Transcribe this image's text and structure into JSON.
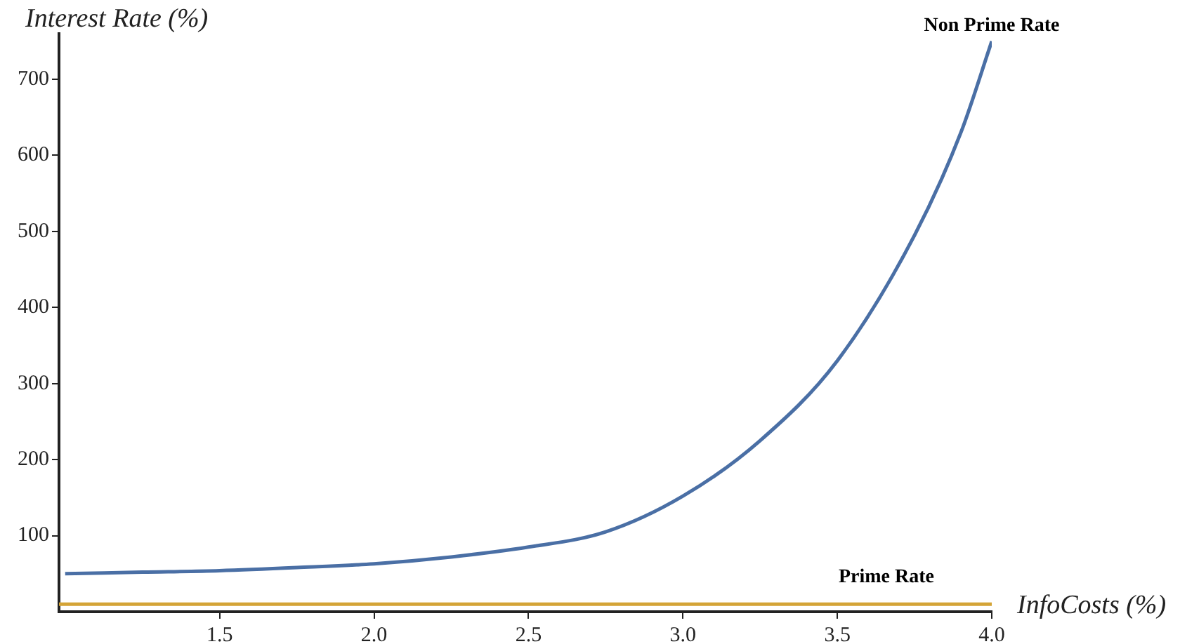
{
  "chart_data": {
    "type": "line",
    "xlabel": "InfoCosts (%)",
    "ylabel": "Interest Rate (%)",
    "xlim": [
      0.98,
      4.0
    ],
    "ylim": [
      0,
      760
    ],
    "xticks": [
      1.5,
      {
        "value": 2,
        "label": "2.0"
      },
      2.5,
      {
        "value": 3,
        "label": "3.0"
      },
      3.5,
      {
        "value": 4,
        "label": "4.0"
      }
    ],
    "yticks": [
      100,
      200,
      300,
      400,
      500,
      600,
      700
    ],
    "marker": "none",
    "series": [
      {
        "name": "Non Prime Rate",
        "color": "#4a6fa5",
        "x": [
          1.0,
          1.25,
          1.5,
          1.75,
          2.0,
          2.25,
          2.5,
          2.75,
          3.0,
          3.25,
          3.5,
          3.75,
          3.9,
          4.0
        ],
        "values": [
          50,
          52,
          54,
          58,
          63,
          72,
          85,
          105,
          152,
          225,
          330,
          495,
          630,
          750
        ]
      },
      {
        "name": "Prime Rate",
        "color": "#d4a437",
        "x": [
          0.98,
          4.0
        ],
        "values": [
          10,
          10
        ]
      }
    ]
  }
}
